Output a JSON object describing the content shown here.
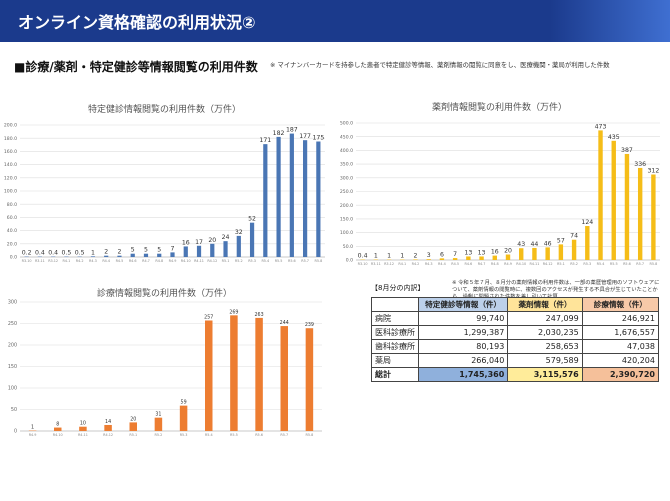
{
  "header": {
    "title": "オンライン資格確認の利用状況②"
  },
  "section": {
    "title": "■診療/薬剤・特定健診等情報閲覧の利用件数",
    "note": "※ マイナンバーカードを持参した患者で特定健診等情報、薬剤情報の閲覧に同意をし、医療機関・薬局が利用した件数"
  },
  "footnote": "※ 令和５年７月、８月分の薬剤情報の利用件数は、一部の薬歴管理用のソフトウェアについて、薬剤情報の閲覧時に、複数回のアクセスが発生する不具合が生じていたことから、過剰に間題された件数を差し引いて計算",
  "colors": {
    "blue": "#4a76b4",
    "yellow": "#f5bd18",
    "orange": "#ed7d31",
    "header": "#1b3a8c"
  },
  "table": {
    "caption": "【8月分の内訳】",
    "headers": [
      "",
      "特定健診等情報（件）",
      "薬剤情報（件）",
      "診療情報（件）"
    ],
    "rows": [
      [
        "病院",
        "99,740",
        "247,099",
        "246,921"
      ],
      [
        "医科診療所",
        "1,299,387",
        "2,030,235",
        "1,676,557"
      ],
      [
        "歯科診療所",
        "80,193",
        "258,653",
        "47,038"
      ],
      [
        "薬局",
        "266,040",
        "579,589",
        "420,204"
      ]
    ],
    "total": [
      "総計",
      "1,745,360",
      "3,115,576",
      "2,390,720"
    ]
  },
  "chart_data": [
    {
      "type": "bar",
      "title": "特定健診情報閲覧の利用件数（万件）",
      "color": "#4a76b4",
      "ylim": [
        0,
        200
      ],
      "yticks": [
        0,
        20,
        40,
        60,
        80,
        100,
        120,
        140,
        160,
        180,
        200
      ],
      "ytick_labels": [
        "0.0",
        "20.0",
        "40.0",
        "60.0",
        "80.0",
        "100.0",
        "120.0",
        "140.0",
        "160.0",
        "180.0",
        "200.0"
      ],
      "categories": [
        "R3.10",
        "R3.11",
        "R3.12",
        "R4.1",
        "R4.2",
        "R4.3",
        "R4.4",
        "R4.5",
        "R4.6",
        "R4.7",
        "R4.8",
        "R4.9",
        "R4.10",
        "R4.11",
        "R4.12",
        "R5.1",
        "R5.2",
        "R5.3",
        "R5.4",
        "R5.5",
        "R5.6",
        "R5.7",
        "R5.8"
      ],
      "values": [
        0.2,
        0.4,
        0.4,
        0.5,
        0.5,
        1,
        2,
        2,
        5,
        5,
        5,
        7,
        16,
        17,
        20,
        24,
        32,
        52,
        171,
        182,
        187,
        177,
        175
      ],
      "value_labels": [
        "0.2",
        "0.4",
        "0.4",
        "0.5",
        "0.5",
        "1",
        "2",
        "2",
        "5",
        "5",
        "5",
        "7",
        "16",
        "17",
        "20",
        "24",
        "32",
        "52",
        "171",
        "182",
        "187",
        "177",
        "175"
      ],
      "grid": true
    },
    {
      "type": "bar",
      "title": "薬剤情報閲覧の利用件数（万件）",
      "color": "#f5bd18",
      "ylim": [
        0,
        500
      ],
      "yticks": [
        0,
        50,
        100,
        150,
        200,
        250,
        300,
        350,
        400,
        450,
        500
      ],
      "ytick_labels": [
        "0.0",
        "50.0",
        "100.0",
        "150.0",
        "200.0",
        "250.0",
        "300.0",
        "350.0",
        "400.0",
        "450.0",
        "500.0"
      ],
      "categories": [
        "R3.10",
        "R3.11",
        "R3.12",
        "R4.1",
        "R4.2",
        "R4.3",
        "R4.4",
        "R4.5",
        "R4.6",
        "R4.7",
        "R4.8",
        "R4.9",
        "R4.10",
        "R4.11",
        "R4.12",
        "R5.1",
        "R5.2",
        "R5.3",
        "R5.4",
        "R5.5",
        "R5.6",
        "R5.7",
        "R5.8"
      ],
      "values": [
        0.4,
        1,
        1,
        1,
        2,
        3,
        6,
        7,
        13,
        13,
        16,
        20,
        43,
        44,
        46,
        57,
        74,
        124,
        473,
        435,
        387,
        336,
        312
      ],
      "value_labels": [
        "0.4",
        "1",
        "1",
        "1",
        "2",
        "3",
        "6",
        "7",
        "13",
        "13",
        "16",
        "20",
        "43",
        "44",
        "46",
        "57",
        "74",
        "124",
        "473",
        "435",
        "387",
        "336",
        "312"
      ],
      "grid": true
    },
    {
      "type": "bar",
      "title": "診療情報閲覧の利用件数（万件）",
      "color": "#ed7d31",
      "ylim": [
        0,
        300
      ],
      "yticks": [
        0,
        50,
        100,
        150,
        200,
        250,
        300
      ],
      "ytick_labels": [
        "0",
        "50",
        "100",
        "150",
        "200",
        "250",
        "300"
      ],
      "categories": [
        "R4.9",
        "R4.10",
        "R4.11",
        "R4.12",
        "R5.1",
        "R5.2",
        "R5.3",
        "R5.4",
        "R5.5",
        "R5.6",
        "R5.7",
        "R5.8"
      ],
      "values": [
        1,
        8,
        10,
        14,
        20,
        31,
        59,
        257,
        269,
        263,
        244,
        239
      ],
      "value_labels": [
        "1",
        "8",
        "10",
        "14",
        "20",
        "31",
        "59",
        "257",
        "269",
        "263",
        "244",
        "239"
      ],
      "grid": true
    }
  ]
}
